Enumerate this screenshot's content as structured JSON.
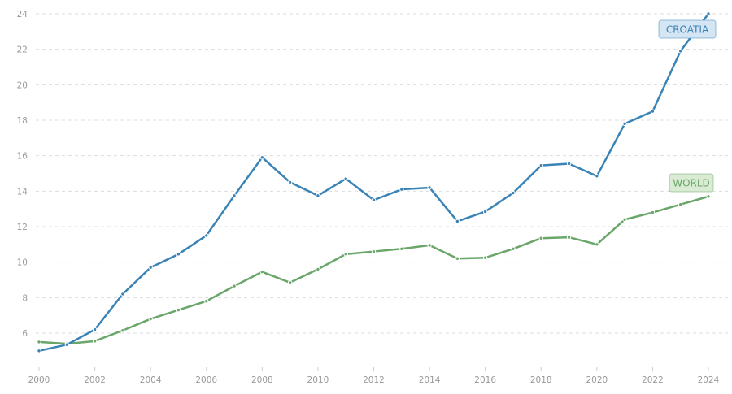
{
  "chart_data": {
    "type": "line",
    "title": "",
    "xlabel": "",
    "ylabel": "",
    "x": [
      2000,
      2001,
      2002,
      2003,
      2004,
      2005,
      2006,
      2007,
      2008,
      2009,
      2010,
      2011,
      2012,
      2013,
      2014,
      2015,
      2016,
      2017,
      2018,
      2019,
      2020,
      2021,
      2022,
      2023,
      2024
    ],
    "xticks": [
      "2000",
      "2002",
      "2004",
      "2006",
      "2008",
      "2010",
      "2012",
      "2014",
      "2016",
      "2018",
      "2020",
      "2022",
      "2024"
    ],
    "yticks": [
      "6",
      "8",
      "10",
      "12",
      "14",
      "16",
      "18",
      "20",
      "22",
      "24"
    ],
    "ylim": [
      4,
      24
    ],
    "grid": true,
    "legend": "inline labels at line ends",
    "series": [
      {
        "name": "CROATIA",
        "color": "#3a83b6",
        "label_bg": "#d4e5f3",
        "values": [
          5.0,
          5.35,
          6.2,
          8.2,
          9.7,
          10.45,
          11.5,
          13.75,
          15.9,
          14.5,
          13.75,
          14.7,
          13.5,
          14.1,
          14.2,
          12.3,
          12.85,
          13.9,
          15.45,
          15.55,
          14.85,
          17.8,
          18.5,
          21.9,
          24.0
        ]
      },
      {
        "name": "WORLD",
        "color": "#6aa66a",
        "label_bg": "#d9ecd3",
        "values": [
          5.5,
          5.4,
          5.55,
          6.15,
          6.8,
          7.3,
          7.8,
          8.65,
          9.45,
          8.85,
          9.6,
          10.45,
          10.6,
          10.75,
          10.95,
          10.2,
          10.25,
          10.75,
          11.35,
          11.4,
          11.0,
          12.4,
          12.8,
          13.25,
          13.7
        ]
      }
    ]
  }
}
